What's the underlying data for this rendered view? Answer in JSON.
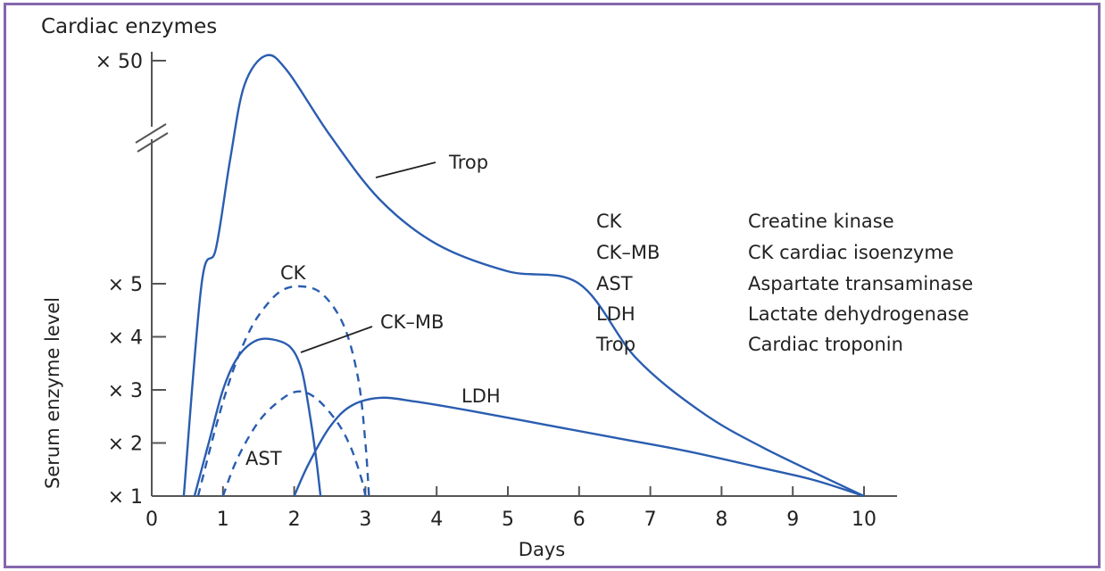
{
  "chart_data": {
    "type": "line",
    "title": "Cardiac enzymes",
    "xlabel": "Days",
    "ylabel": "Serum enzyme level",
    "xlim": [
      0,
      10
    ],
    "x_ticks": [
      "0",
      "1",
      "2",
      "3",
      "4",
      "5",
      "6",
      "7",
      "8",
      "9",
      "10"
    ],
    "y_ticks": [
      "× 1",
      "× 2",
      "× 3",
      "× 4",
      "× 5",
      "× 50"
    ],
    "y_tick_values": [
      1,
      2,
      3,
      4,
      5,
      50
    ],
    "y_axis_break": "between ×5 and ×50",
    "grid": false,
    "series": [
      {
        "name": "Trop",
        "style": "solid",
        "color": "#2a5db0",
        "points": [
          [
            0.45,
            1
          ],
          [
            0.7,
            5
          ],
          [
            0.9,
            12
          ],
          [
            1.1,
            30
          ],
          [
            1.3,
            45
          ],
          [
            1.6,
            51
          ],
          [
            1.9,
            48
          ],
          [
            2.5,
            35
          ],
          [
            3.2,
            22
          ],
          [
            4,
            13
          ],
          [
            5,
            7.5
          ],
          [
            6,
            5
          ],
          [
            6.8,
            3.6
          ],
          [
            7.7,
            2.6
          ],
          [
            8.6,
            1.9
          ],
          [
            10,
            1
          ]
        ]
      },
      {
        "name": "CK",
        "style": "dashed",
        "color": "#2a5db0",
        "points": [
          [
            0.65,
            1
          ],
          [
            0.9,
            2.3
          ],
          [
            1.1,
            3.2
          ],
          [
            1.3,
            3.9
          ],
          [
            1.5,
            4.4
          ],
          [
            1.8,
            4.85
          ],
          [
            2.1,
            4.95
          ],
          [
            2.4,
            4.8
          ],
          [
            2.7,
            4.2
          ],
          [
            2.9,
            3.2
          ],
          [
            3.0,
            2.0
          ],
          [
            3.05,
            1
          ]
        ]
      },
      {
        "name": "CK-MB",
        "style": "solid",
        "color": "#2a5db0",
        "points": [
          [
            0.6,
            1
          ],
          [
            0.8,
            2.0
          ],
          [
            1.0,
            3.0
          ],
          [
            1.2,
            3.6
          ],
          [
            1.45,
            3.92
          ],
          [
            1.7,
            3.95
          ],
          [
            1.95,
            3.8
          ],
          [
            2.1,
            3.4
          ],
          [
            2.2,
            2.7
          ],
          [
            2.3,
            1.8
          ],
          [
            2.37,
            1
          ]
        ]
      },
      {
        "name": "AST",
        "style": "dashed",
        "color": "#2a5db0",
        "points": [
          [
            1.0,
            1
          ],
          [
            1.2,
            1.7
          ],
          [
            1.5,
            2.4
          ],
          [
            1.8,
            2.8
          ],
          [
            2.05,
            2.97
          ],
          [
            2.3,
            2.85
          ],
          [
            2.6,
            2.4
          ],
          [
            2.8,
            1.9
          ],
          [
            2.95,
            1.3
          ],
          [
            3.0,
            1
          ]
        ]
      },
      {
        "name": "LDH",
        "style": "solid",
        "color": "#2a5db0",
        "points": [
          [
            2.0,
            1
          ],
          [
            2.2,
            1.6
          ],
          [
            2.5,
            2.3
          ],
          [
            2.8,
            2.7
          ],
          [
            3.2,
            2.85
          ],
          [
            3.7,
            2.78
          ],
          [
            4.5,
            2.6
          ],
          [
            5.5,
            2.35
          ],
          [
            6.5,
            2.1
          ],
          [
            7.5,
            1.85
          ],
          [
            8.5,
            1.55
          ],
          [
            9.3,
            1.3
          ],
          [
            10,
            1
          ]
        ]
      }
    ],
    "curve_labels": [
      {
        "series": "Trop",
        "text": "Trop"
      },
      {
        "series": "CK",
        "text": "CK"
      },
      {
        "series": "CK-MB",
        "text": "CK–MB"
      },
      {
        "series": "AST",
        "text": "AST"
      },
      {
        "series": "LDH",
        "text": "LDH"
      }
    ],
    "legend": {
      "placement": "right",
      "entries": [
        {
          "abbr": "CK",
          "name": "Creatine kinase"
        },
        {
          "abbr": "CK–MB",
          "name": "CK cardiac isoenzyme"
        },
        {
          "abbr": "AST",
          "name": "Aspartate transaminase"
        },
        {
          "abbr": "LDH",
          "name": "Lactate dehydrogenase"
        },
        {
          "abbr": "Trop",
          "name": "Cardiac troponin"
        }
      ]
    }
  },
  "colors": {
    "frame": "#8467ad",
    "curve": "#2a5db0",
    "axis": "#555555"
  }
}
